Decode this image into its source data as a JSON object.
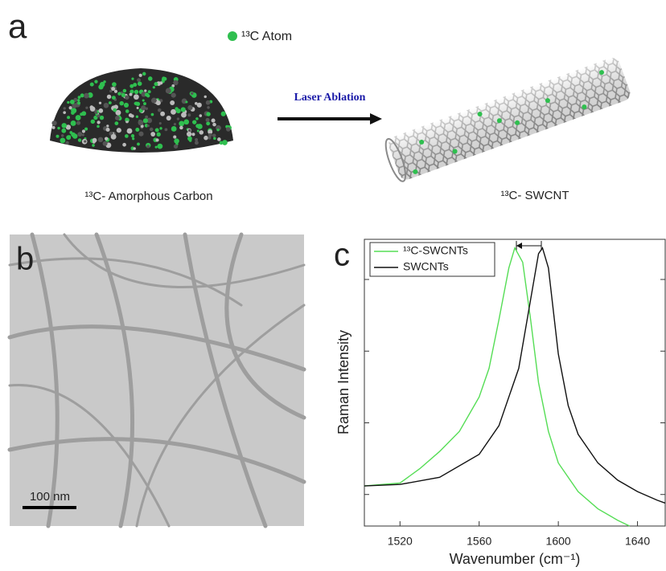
{
  "panel_a": {
    "label": "a",
    "legend": "¹³C Atom",
    "arrow_label": "Laser Ablation",
    "left_caption": "¹³C- Amorphous Carbon",
    "right_caption": "¹³C- SWCNT"
  },
  "panel_b": {
    "label": "b",
    "scale_bar": "100 nm"
  },
  "panel_c": {
    "label": "c"
  },
  "chart_data": {
    "type": "line",
    "xlabel": "Wavenumber (cm⁻¹)",
    "ylabel": "Raman Intensity",
    "xlim": [
      1502,
      1654
    ],
    "xticks": [
      1520,
      1560,
      1600,
      1640
    ],
    "ylim": [
      0,
      1
    ],
    "yticks": [
      0.11,
      0.36,
      0.61,
      0.86
    ],
    "legend": "upper left",
    "series": [
      {
        "name": "¹³C-SWCNTs",
        "color": "#55dd55",
        "x": [
          1502,
          1520,
          1530,
          1540,
          1550,
          1560,
          1565,
          1570,
          1575,
          1578,
          1582,
          1586,
          1590,
          1595,
          1600,
          1610,
          1620,
          1630,
          1636
        ],
        "values": [
          0.14,
          0.15,
          0.2,
          0.26,
          0.33,
          0.45,
          0.55,
          0.72,
          0.9,
          0.97,
          0.92,
          0.72,
          0.5,
          0.33,
          0.22,
          0.12,
          0.06,
          0.02,
          0.0
        ]
      },
      {
        "name": "SWCNTs",
        "color": "#111111",
        "x": [
          1502,
          1520,
          1540,
          1560,
          1570,
          1580,
          1585,
          1590,
          1592,
          1595,
          1600,
          1605,
          1610,
          1620,
          1630,
          1640,
          1650,
          1654
        ],
        "values": [
          0.14,
          0.145,
          0.17,
          0.25,
          0.35,
          0.55,
          0.75,
          0.95,
          0.97,
          0.9,
          0.6,
          0.42,
          0.32,
          0.22,
          0.16,
          0.12,
          0.09,
          0.08
        ]
      }
    ]
  }
}
